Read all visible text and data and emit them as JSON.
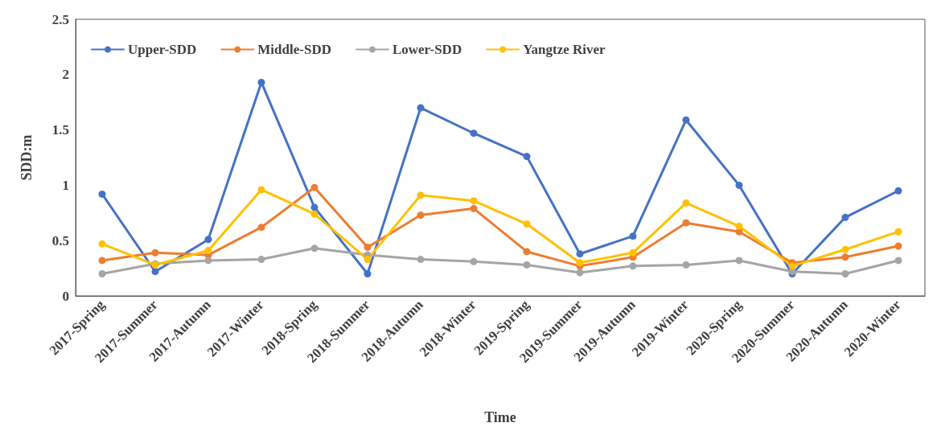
{
  "chart_data": {
    "type": "line",
    "xlabel": "Time",
    "ylabel": "SDD:m",
    "categories": [
      "2017-Spring",
      "2017-Summer",
      "2017-Autumn",
      "2017-Winter",
      "2018-Spring",
      "2018-Summer",
      "2018-Autumn",
      "2018-Winter",
      "2019-Spring",
      "2019-Summer",
      "2019-Autumn",
      "2019-Winter",
      "2020-Spring",
      "2020-Summer",
      "2020-Autumn",
      "2020-Winter"
    ],
    "series": [
      {
        "name": "Upper-SDD",
        "color": "#4472c4",
        "values": [
          0.92,
          0.22,
          0.51,
          1.93,
          0.8,
          0.2,
          1.7,
          1.47,
          1.26,
          0.38,
          0.54,
          1.59,
          1.0,
          0.2,
          0.71,
          0.95
        ]
      },
      {
        "name": "Middle-SDD",
        "color": "#ed7d31",
        "values": [
          0.32,
          0.39,
          0.37,
          0.62,
          0.98,
          0.44,
          0.73,
          0.79,
          0.4,
          0.27,
          0.35,
          0.66,
          0.58,
          0.3,
          0.35,
          0.45
        ]
      },
      {
        "name": "Lower-SDD",
        "color": "#a5a5a5",
        "values": [
          0.2,
          0.29,
          0.32,
          0.33,
          0.43,
          0.37,
          0.33,
          0.31,
          0.28,
          0.21,
          0.27,
          0.28,
          0.32,
          0.22,
          0.2,
          0.32
        ]
      },
      {
        "name": "Yangtze River",
        "color": "#ffc000",
        "values": [
          0.47,
          0.28,
          0.41,
          0.96,
          0.74,
          0.33,
          0.91,
          0.86,
          0.65,
          0.3,
          0.39,
          0.84,
          0.63,
          0.27,
          0.42,
          0.58
        ]
      }
    ],
    "ylim": [
      0,
      2.5
    ],
    "yticks": [
      0,
      0.5,
      1,
      1.5,
      2,
      2.5
    ],
    "grid": false,
    "legend": "top left",
    "marker": "circle",
    "line_style": "solid"
  }
}
